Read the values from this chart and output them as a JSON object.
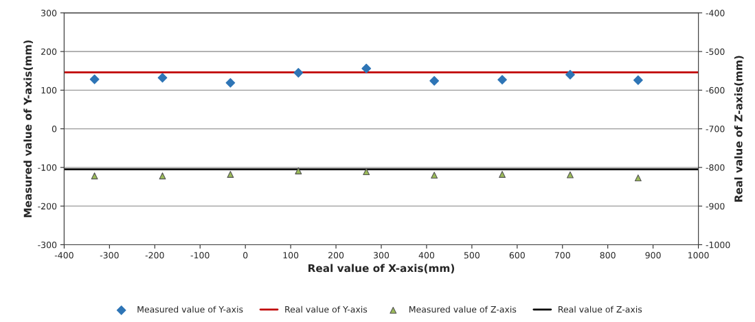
{
  "chart_data": {
    "type": "scatter",
    "xlabel": "Real value of X-axis(mm)",
    "ylabel": "Measured value of Y-axis(mm)",
    "y2label": "Real value of Z-axis(mm)",
    "x": [
      -333,
      -183,
      -33,
      117,
      267,
      417,
      567,
      717,
      867
    ],
    "series": [
      {
        "name": "Measured value of Y-axis",
        "marker": "diamond",
        "color": "#2e75b6",
        "values": [
          128,
          132,
          119,
          145,
          156,
          124,
          127,
          140,
          126
        ]
      },
      {
        "name": "Measured value of Z-axis",
        "marker": "triangle",
        "axis": "y2",
        "color": "#9bbb59",
        "values": [
          -822,
          -822,
          -818,
          -809,
          -811,
          -820,
          -818,
          -819,
          -827
        ]
      }
    ],
    "ref_lines": [
      {
        "axis": "y",
        "value": 146,
        "label": "Real value of Y-axis",
        "color": "#c00000",
        "line_style": "solid"
      },
      {
        "axis": "y2",
        "value": -805,
        "label": "Real value of Z-axis",
        "color": "#000000",
        "line_style": "solid"
      }
    ],
    "xlim": [
      -400,
      1000
    ],
    "xticks": [
      -400,
      -300,
      -200,
      -100,
      0,
      100,
      200,
      300,
      400,
      500,
      600,
      700,
      800,
      900,
      1000
    ],
    "ylim": [
      -300,
      300
    ],
    "yticks": [
      -300,
      -200,
      -100,
      0,
      100,
      200,
      300
    ],
    "y2lim": [
      -1000,
      -400
    ],
    "y2ticks": [
      -1000,
      -900,
      -800,
      -700,
      -600,
      -500,
      -400
    ],
    "grid": "y",
    "legend": "bottom"
  }
}
